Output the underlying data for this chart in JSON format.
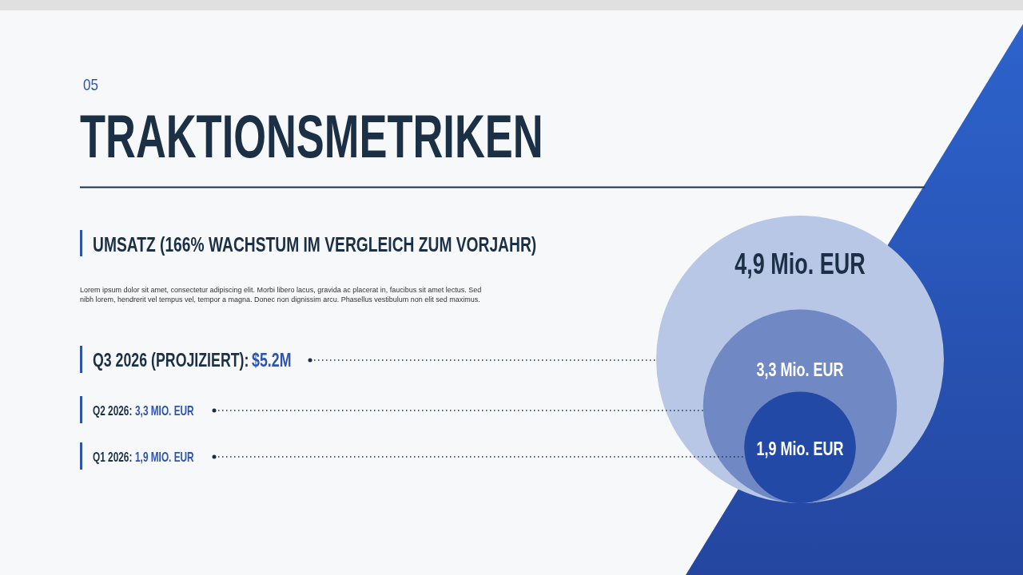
{
  "chart_data": {
    "type": "other",
    "title": "TRAKTIONSMETRIKEN",
    "subtitle": "UMSATZ (166% WACHSTUM IM VERGLEICH ZUM VORJAHR)",
    "categories": [
      null,
      null,
      null
    ],
    "values": [
      4.9,
      3.3,
      1.9
    ],
    "value_labels": [
      "4,9 Mio. EUR",
      "3,3 Mio. EUR",
      "1,9 Mio. EUR"
    ],
    "colors": [
      "#b8c7e5",
      "#7089c4",
      "#2249a6"
    ],
    "annotations": [
      "05",
      "Lorem ipsum dolor sit amet, consectetur adipiscing elit. Morbi libero lacus, gravida ac placerat in, faucibus sit amet lectus. Sed nibh lorem, hendrerit vel tempus vel, tempor a magna. Donec non dignissim arcu. Phasellus vestibulum non elit sed maximus.",
      "Q3 2026 (PROJIZIERT):",
      "$5.2M",
      "Q2 2026:",
      "3,3 MIO. EUR",
      "Q1 2026:",
      "1,9 MIO. EUR"
    ]
  }
}
